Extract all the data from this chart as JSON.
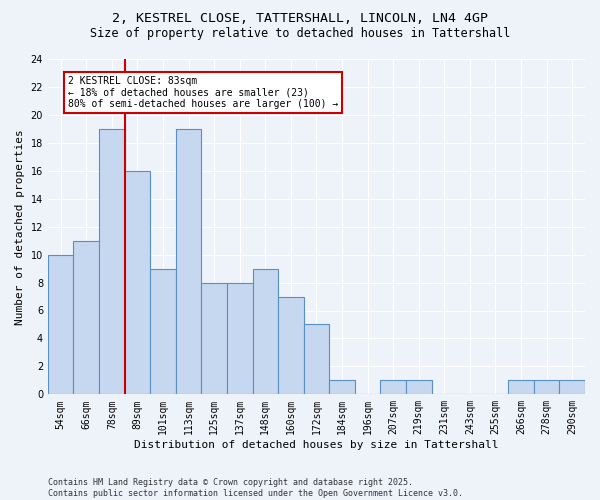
{
  "title_line1": "2, KESTREL CLOSE, TATTERSHALL, LINCOLN, LN4 4GP",
  "title_line2": "Size of property relative to detached houses in Tattershall",
  "xlabel": "Distribution of detached houses by size in Tattershall",
  "ylabel": "Number of detached properties",
  "categories": [
    "54sqm",
    "66sqm",
    "78sqm",
    "89sqm",
    "101sqm",
    "113sqm",
    "125sqm",
    "137sqm",
    "148sqm",
    "160sqm",
    "172sqm",
    "184sqm",
    "196sqm",
    "207sqm",
    "219sqm",
    "231sqm",
    "243sqm",
    "255sqm",
    "266sqm",
    "278sqm",
    "290sqm"
  ],
  "values": [
    10,
    11,
    19,
    16,
    9,
    19,
    8,
    8,
    9,
    7,
    5,
    1,
    0,
    1,
    1,
    0,
    0,
    0,
    1,
    1,
    1
  ],
  "bar_color": "#c5d8f0",
  "bar_edge_color": "#5a8fc2",
  "ylim": [
    0,
    24
  ],
  "yticks": [
    0,
    2,
    4,
    6,
    8,
    10,
    12,
    14,
    16,
    18,
    20,
    22,
    24
  ],
  "vline_x": 2.5,
  "vline_color": "#cc0000",
  "annotation_box_text": "2 KESTREL CLOSE: 83sqm\n← 18% of detached houses are smaller (23)\n80% of semi-detached houses are larger (100) →",
  "annotation_box_color": "#cc0000",
  "footer_text": "Contains HM Land Registry data © Crown copyright and database right 2025.\nContains public sector information licensed under the Open Government Licence v3.0.",
  "background_color": "#eef2f9",
  "plot_background": "#eef2f9",
  "grid_color": "#ffffff",
  "title_fontsize": 9.5,
  "subtitle_fontsize": 8.5,
  "axis_label_fontsize": 8,
  "tick_fontsize": 7,
  "annotation_fontsize": 7,
  "footer_fontsize": 6
}
